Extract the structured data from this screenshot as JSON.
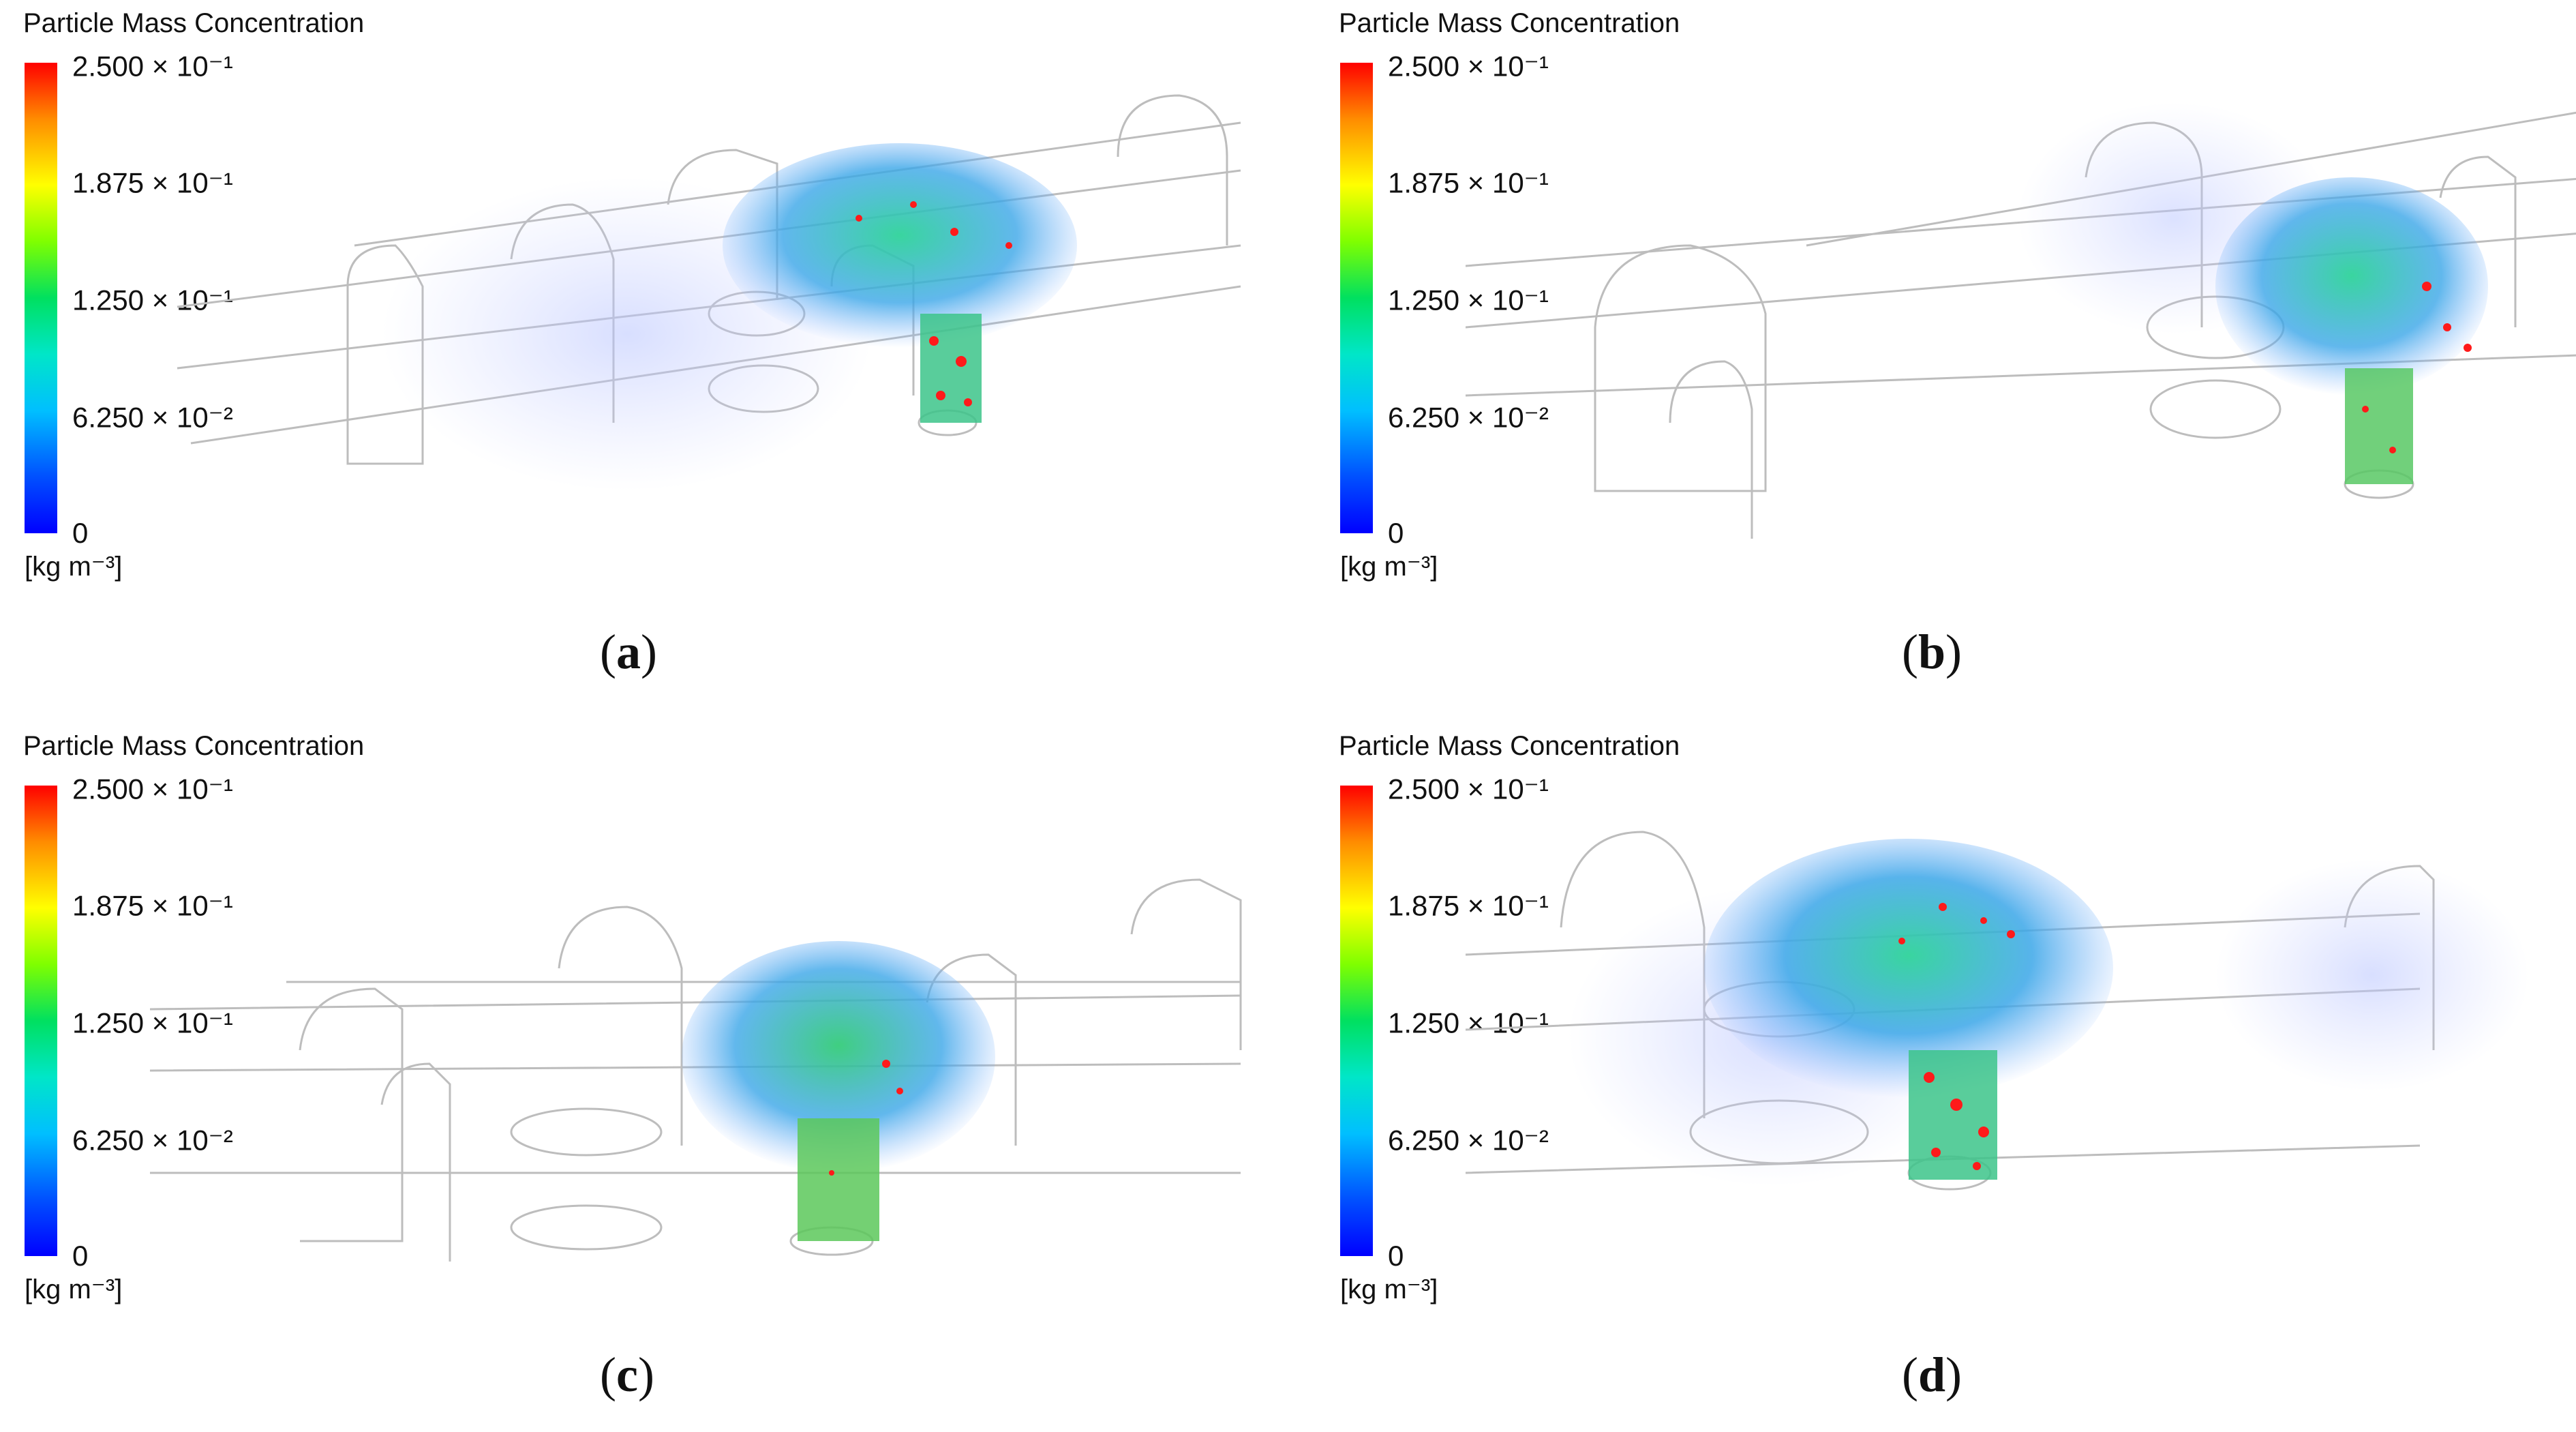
{
  "legend": {
    "title": "Particle Mass Concentration",
    "ticks": [
      "2.500 × 10⁻¹",
      "1.875 × 10⁻¹",
      "1.250 × 10⁻¹",
      "6.250 × 10⁻²",
      "0"
    ],
    "unit": "[kg m⁻³]"
  },
  "panels": [
    {
      "letter": "a"
    },
    {
      "letter": "b"
    },
    {
      "letter": "c"
    },
    {
      "letter": "d"
    }
  ],
  "colors": {
    "max": "#ff0000",
    "mid": "#00e060",
    "min": "#0000ff",
    "wireframe": "#bdbdbd"
  }
}
